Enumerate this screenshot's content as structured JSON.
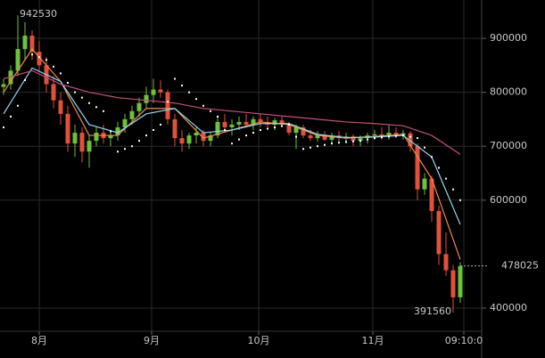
{
  "chart_data": {
    "type": "candlestick",
    "up_color": "#6cc13d",
    "down_color": "#e0513b",
    "ylim": [
      357000,
      971000
    ],
    "yticks": [
      400000,
      600000,
      700000,
      800000,
      900000
    ],
    "xlim": [
      -0.5,
      67
    ],
    "xticks": [
      {
        "value": 5,
        "label": "8月"
      },
      {
        "value": 20.75,
        "label": "9月"
      },
      {
        "value": 35.75,
        "label": "10月"
      },
      {
        "value": 51.75,
        "label": "11月"
      },
      {
        "value": 64.5,
        "label": "09:10:0"
      }
    ],
    "grid": true,
    "max_label": 942530,
    "max_label_x": 2,
    "min_label": 391560,
    "min_label_x": 63,
    "last_price": 478025,
    "candles": [
      [
        810000,
        825000,
        795000,
        815000
      ],
      [
        815000,
        850000,
        805000,
        840000
      ],
      [
        840000,
        942530,
        830000,
        880000
      ],
      [
        880000,
        930000,
        860000,
        905000
      ],
      [
        905000,
        915000,
        860000,
        875000
      ],
      [
        875000,
        895000,
        840000,
        850000
      ],
      [
        850000,
        865000,
        800000,
        815000
      ],
      [
        815000,
        830000,
        770000,
        785000
      ],
      [
        785000,
        800000,
        740000,
        760000
      ],
      [
        760000,
        775000,
        690000,
        705000
      ],
      [
        705000,
        740000,
        680000,
        725000
      ],
      [
        725000,
        735000,
        670000,
        690000
      ],
      [
        690000,
        720000,
        660000,
        710000
      ],
      [
        710000,
        735000,
        700000,
        725000
      ],
      [
        725000,
        740000,
        705000,
        715000
      ],
      [
        715000,
        730000,
        700000,
        720000
      ],
      [
        720000,
        745000,
        710000,
        735000
      ],
      [
        735000,
        760000,
        725000,
        750000
      ],
      [
        750000,
        775000,
        740000,
        765000
      ],
      [
        765000,
        790000,
        755000,
        780000
      ],
      [
        780000,
        810000,
        770000,
        795000
      ],
      [
        795000,
        825000,
        780000,
        805000
      ],
      [
        805000,
        822000,
        790000,
        800000
      ],
      [
        800000,
        805000,
        740000,
        750000
      ],
      [
        750000,
        760000,
        700000,
        715000
      ],
      [
        715000,
        730000,
        690000,
        705000
      ],
      [
        705000,
        725000,
        695000,
        720000
      ],
      [
        720000,
        735000,
        705000,
        725000
      ],
      [
        725000,
        730000,
        700000,
        710000
      ],
      [
        710000,
        725000,
        700000,
        720000
      ],
      [
        720000,
        755000,
        715000,
        745000
      ],
      [
        745000,
        760000,
        725000,
        735000
      ],
      [
        735000,
        750000,
        720000,
        740000
      ],
      [
        740000,
        755000,
        730000,
        745000
      ],
      [
        745000,
        760000,
        735000,
        740000
      ],
      [
        740000,
        755000,
        730000,
        750000
      ],
      [
        750000,
        760000,
        735000,
        745000
      ],
      [
        745000,
        755000,
        735000,
        740000
      ],
      [
        740000,
        752000,
        730000,
        748000
      ],
      [
        748000,
        755000,
        735000,
        740000
      ],
      [
        740000,
        745000,
        720000,
        725000
      ],
      [
        725000,
        740000,
        695000,
        735000
      ],
      [
        735000,
        740000,
        715000,
        720000
      ],
      [
        720000,
        730000,
        710000,
        715000
      ],
      [
        715000,
        728000,
        708000,
        720000
      ],
      [
        720000,
        728000,
        710000,
        712000
      ],
      [
        712000,
        725000,
        705000,
        720000
      ],
      [
        720000,
        728000,
        708000,
        715000
      ],
      [
        715000,
        725000,
        705000,
        718000
      ],
      [
        718000,
        722000,
        700000,
        710000
      ],
      [
        710000,
        720000,
        700000,
        715000
      ],
      [
        715000,
        725000,
        705000,
        720000
      ],
      [
        720000,
        730000,
        712000,
        722000
      ],
      [
        722000,
        735000,
        712000,
        718000
      ],
      [
        718000,
        740000,
        712000,
        725000
      ],
      [
        725000,
        735000,
        715000,
        720000
      ],
      [
        720000,
        730000,
        712000,
        724000
      ],
      [
        724000,
        728000,
        690000,
        700000
      ],
      [
        700000,
        705000,
        600000,
        620000
      ],
      [
        620000,
        650000,
        610000,
        640000
      ],
      [
        640000,
        645000,
        560000,
        580000
      ],
      [
        580000,
        590000,
        480000,
        500000
      ],
      [
        500000,
        540000,
        460000,
        470000
      ],
      [
        470000,
        480000,
        391560,
        420000
      ],
      [
        420000,
        485000,
        410000,
        478025
      ]
    ],
    "lines": [
      {
        "color": "#f08a4b",
        "x": [
          0,
          4,
          8,
          12,
          16,
          20,
          24,
          28,
          32,
          36,
          40,
          44,
          48,
          52,
          56,
          60,
          64
        ],
        "values": [
          800000,
          880000,
          820000,
          720000,
          720000,
          770000,
          770000,
          715000,
          730000,
          745000,
          740000,
          720000,
          715000,
          718000,
          722000,
          640000,
          490000
        ]
      },
      {
        "color": "#8fd8f0",
        "x": [
          0,
          4,
          8,
          12,
          16,
          20,
          24,
          28,
          32,
          36,
          40,
          44,
          48,
          52,
          56,
          60,
          64
        ],
        "values": [
          760000,
          845000,
          820000,
          740000,
          725000,
          760000,
          770000,
          725000,
          730000,
          742000,
          742000,
          722000,
          716000,
          717000,
          720000,
          680000,
          555000
        ]
      },
      {
        "color": "#c0507a",
        "x": [
          0,
          4,
          8,
          12,
          16,
          20,
          24,
          28,
          32,
          36,
          40,
          44,
          48,
          52,
          56,
          60,
          64
        ],
        "values": [
          825000,
          840000,
          815000,
          800000,
          790000,
          785000,
          780000,
          770000,
          765000,
          760000,
          755000,
          750000,
          745000,
          742000,
          738000,
          720000,
          685000
        ]
      }
    ],
    "sar": {
      "color": "#ffffff",
      "x": [
        0,
        2,
        4,
        6,
        8,
        10,
        12,
        14,
        16,
        18,
        20,
        22,
        24,
        26,
        28,
        30,
        32,
        34,
        36,
        38,
        40,
        42,
        44,
        46,
        48,
        50,
        52,
        54,
        56,
        58,
        60,
        62,
        64
      ],
      "values": [
        735000,
        775000,
        870000,
        860000,
        835000,
        800000,
        780000,
        765000,
        690000,
        700000,
        720000,
        740000,
        825000,
        800000,
        775000,
        755000,
        705000,
        720000,
        730000,
        735000,
        740000,
        695000,
        700000,
        705000,
        708000,
        710000,
        715000,
        718000,
        720000,
        715000,
        680000,
        640000,
        600000
      ]
    }
  }
}
